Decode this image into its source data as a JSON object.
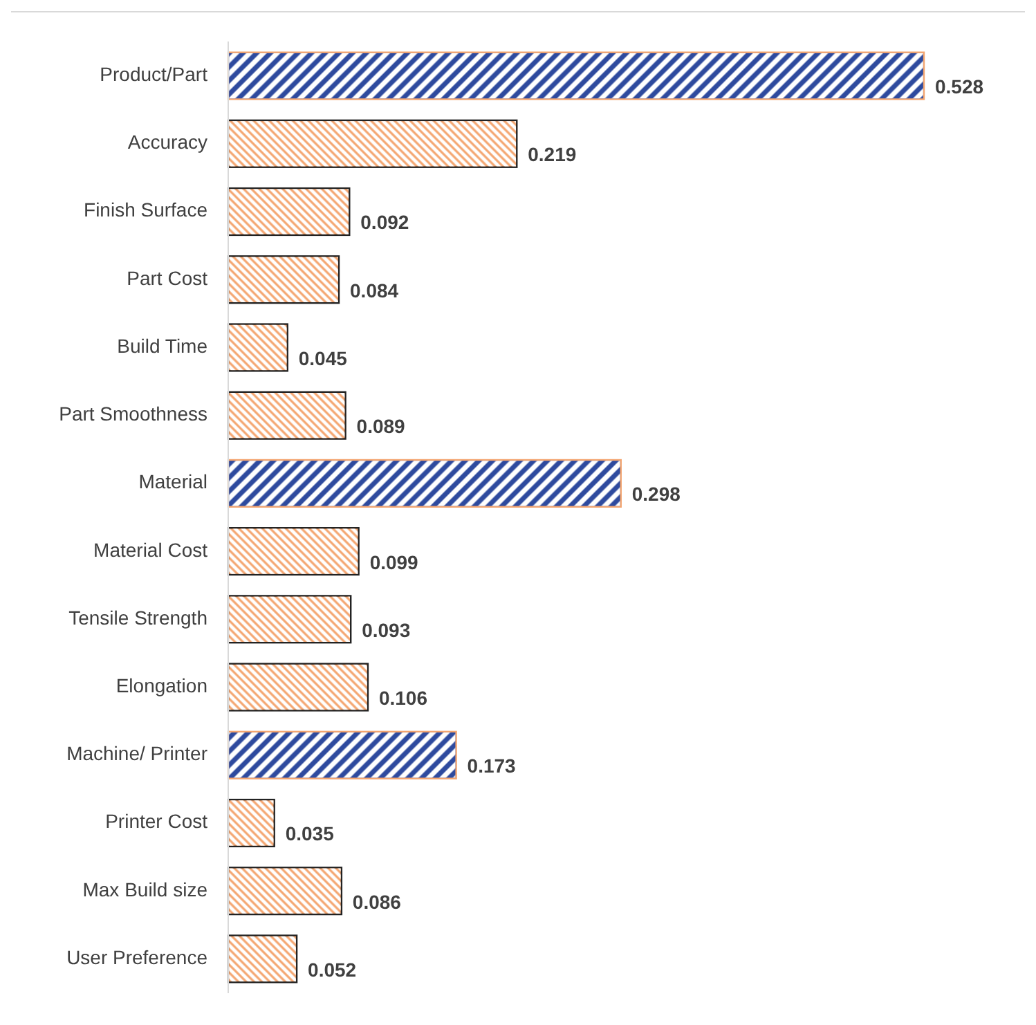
{
  "chart_data": {
    "type": "bar",
    "orientation": "horizontal",
    "data_labels": true,
    "categories": [
      "Product/Part",
      "Accuracy",
      "Finish Surface",
      "Part Cost",
      "Build Time",
      "Part Smoothness",
      "Material",
      "Material Cost",
      "Tensile Strength",
      "Elongation",
      "Machine/ Printer",
      "Printer Cost",
      "Max Build size",
      "User Preference"
    ],
    "values": [
      0.528,
      0.219,
      0.092,
      0.084,
      0.045,
      0.089,
      0.298,
      0.099,
      0.093,
      0.106,
      0.173,
      0.035,
      0.086,
      0.052
    ],
    "colors": [
      "#2e4a9e",
      "#f4a56f",
      "#f4a56f",
      "#f4a56f",
      "#f4a56f",
      "#f4a56f",
      "#2e4a9e",
      "#f4a56f",
      "#f4a56f",
      "#f4a56f",
      "#2e4a9e",
      "#f4a56f",
      "#f4a56f",
      "#f4a56f"
    ],
    "grid": false
  }
}
